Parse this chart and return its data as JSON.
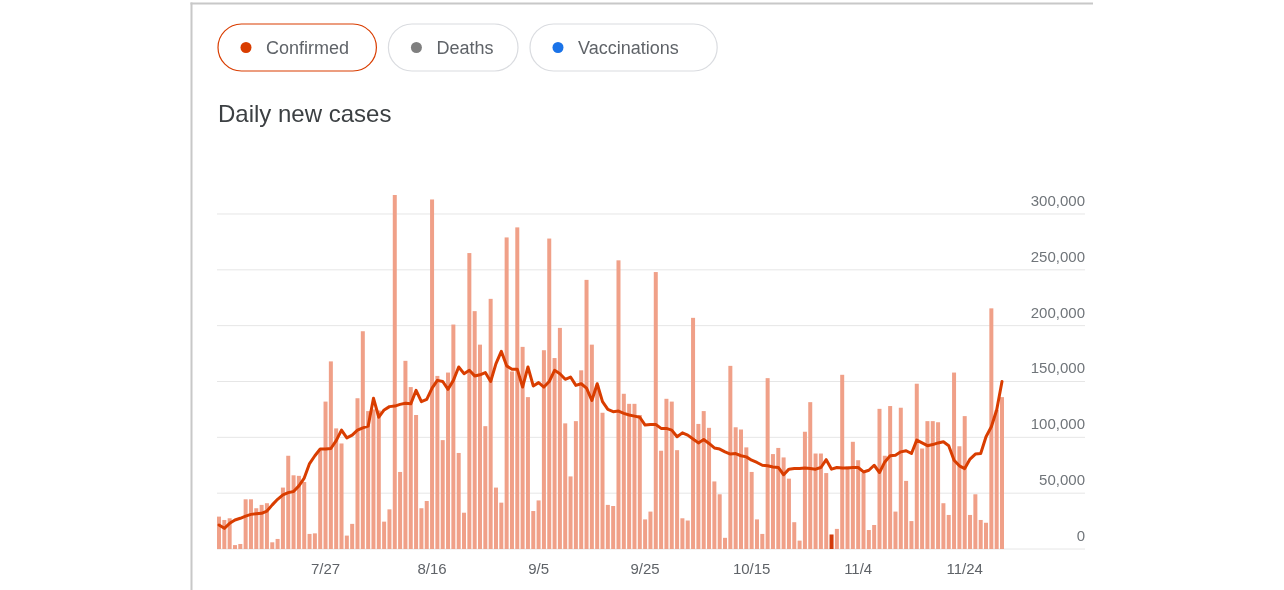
{
  "chart_data": {
    "type": "bar",
    "title": "Daily new cases",
    "annotations": [
      "Confirmed",
      "Deaths",
      "Vaccinations"
    ],
    "categories": [
      null,
      null,
      null,
      null,
      null,
      null,
      null,
      null,
      null,
      null,
      null,
      null,
      null,
      null,
      null,
      null,
      null,
      null,
      null,
      null,
      "7/27",
      null,
      null,
      null,
      null,
      null,
      null,
      null,
      null,
      null,
      null,
      null,
      null,
      null,
      null,
      null,
      null,
      null,
      null,
      null,
      "8/16",
      null,
      null,
      null,
      null,
      null,
      null,
      null,
      null,
      null,
      null,
      null,
      null,
      null,
      null,
      null,
      null,
      null,
      null,
      null,
      "9/5",
      null,
      null,
      null,
      null,
      null,
      null,
      null,
      null,
      null,
      null,
      null,
      null,
      null,
      null,
      null,
      null,
      null,
      null,
      null,
      "9/25",
      null,
      null,
      null,
      null,
      null,
      null,
      null,
      null,
      null,
      null,
      null,
      null,
      null,
      null,
      null,
      null,
      null,
      null,
      null,
      "10/15",
      null,
      null,
      null,
      null,
      null,
      null,
      null,
      null,
      null,
      null,
      null,
      null,
      null,
      null,
      null,
      null,
      null,
      null,
      null,
      "11/4",
      null,
      null,
      null,
      null,
      null,
      null,
      null,
      null,
      null,
      null,
      null,
      null,
      null,
      null,
      null,
      null,
      null,
      null,
      null,
      "11/24",
      null,
      null,
      null,
      null,
      null,
      null,
      null
    ],
    "series": [
      {
        "color": "#f0a088",
        "colors": [
          null,
          null,
          null,
          null,
          null,
          null,
          null,
          null,
          null,
          null,
          null,
          null,
          null,
          null,
          null,
          null,
          null,
          null,
          null,
          null,
          null,
          null,
          null,
          null,
          null,
          null,
          null,
          null,
          null,
          null,
          null,
          null,
          null,
          null,
          null,
          null,
          null,
          null,
          null,
          null,
          null,
          null,
          null,
          null,
          null,
          null,
          null,
          null,
          null,
          null,
          null,
          null,
          null,
          null,
          null,
          null,
          null,
          null,
          null,
          null,
          null,
          null,
          null,
          null,
          null,
          null,
          null,
          null,
          null,
          null,
          null,
          null,
          null,
          null,
          null,
          null,
          null,
          null,
          null,
          null,
          null,
          null,
          null,
          null,
          null,
          null,
          null,
          null,
          null,
          null,
          null,
          null,
          null,
          null,
          null,
          null,
          null,
          null,
          null,
          null,
          null,
          null,
          null,
          null,
          null,
          null,
          null,
          null,
          null,
          null,
          null,
          null,
          null,
          null,
          null,
          "#d33b0b",
          null,
          null,
          null,
          null,
          null,
          null,
          null,
          null,
          null,
          null,
          null,
          null,
          null,
          null,
          null,
          null,
          null,
          null,
          null,
          null,
          null,
          null,
          null,
          null,
          null,
          null,
          null,
          null,
          null,
          null,
          null,
          null
        ],
        "values": [
          29000,
          26000,
          27500,
          3500,
          4500,
          44500,
          44500,
          36500,
          39500,
          41000,
          6000,
          9000,
          55000,
          83500,
          66000,
          65500,
          60000,
          13500,
          14000,
          88500,
          132000,
          168000,
          108000,
          94500,
          12000,
          22500,
          135000,
          195000,
          123500,
          125000,
          124000,
          24500,
          35500,
          317000,
          69000,
          168500,
          145000,
          120000,
          36500,
          43000,
          313000,
          155000,
          97500,
          158000,
          201000,
          86000,
          32500,
          265000,
          213000,
          183000,
          110000,
          224000,
          55000,
          41500,
          279000,
          159000,
          288000,
          181000,
          136000,
          34000,
          43500,
          178000,
          278000,
          171000,
          198000,
          112500,
          65000,
          114500,
          160000,
          241000,
          183000,
          147000,
          122000,
          39500,
          38500,
          258500,
          139000,
          130000,
          130000,
          120000,
          26500,
          33500,
          248000,
          88000,
          134500,
          132000,
          88500,
          27500,
          25500,
          207000,
          112000,
          123500,
          108500,
          60500,
          49000,
          10000,
          164000,
          109000,
          107000,
          91000,
          69000,
          26500,
          13500,
          153000,
          85000,
          90500,
          82000,
          63000,
          24000,
          7500,
          105000,
          131500,
          85500,
          85500,
          68000,
          13000,
          18000,
          156000,
          74000,
          96000,
          79500,
          68000,
          17000,
          21500,
          125500,
          83500,
          128000,
          33500,
          126500,
          61000,
          25000,
          148000,
          90000,
          114500,
          114500,
          113500,
          41000,
          30500,
          158000,
          92000,
          119000,
          30500,
          49000,
          26000,
          23500,
          215500,
          124500,
          136000
        ]
      },
      {
        "type": "line",
        "color": "#d93d00",
        "values": [
          21500,
          18500,
          23000,
          26000,
          27500,
          29500,
          31000,
          31500,
          32000,
          34000,
          39500,
          44500,
          48500,
          50500,
          51500,
          56500,
          63500,
          76500,
          83500,
          89500,
          89500,
          90000,
          97000,
          106500,
          99500,
          102000,
          106500,
          108500,
          110000,
          135000,
          118000,
          124500,
          127500,
          128000,
          129500,
          130500,
          130000,
          142000,
          132000,
          134000,
          144000,
          151000,
          150000,
          143000,
          151000,
          163000,
          157000,
          160000,
          155000,
          156000,
          158000,
          150000,
          166000,
          177000,
          164000,
          161000,
          161000,
          145000,
          163000,
          146000,
          149000,
          145000,
          150000,
          160000,
          157000,
          152000,
          154000,
          146500,
          148000,
          144000,
          133000,
          148000,
          132000,
          125000,
          123000,
          123500,
          121500,
          120000,
          119000,
          118000,
          111000,
          111500,
          111500,
          108000,
          108000,
          106500,
          100500,
          104000,
          102000,
          98500,
          95000,
          98000,
          94500,
          90500,
          89500,
          87000,
          85000,
          85500,
          83500,
          82500,
          79500,
          77500,
          75000,
          74500,
          73500,
          73000,
          66500,
          71500,
          72000,
          72000,
          72500,
          72000,
          71500,
          73000,
          80000,
          71500,
          73000,
          72500,
          72500,
          73000,
          73000,
          69000,
          70500,
          75000,
          68500,
          78000,
          83500,
          84000,
          87000,
          88000,
          85500,
          97500,
          95000,
          92500,
          93500,
          95000,
          96000,
          92500,
          79500,
          74500,
          72000,
          80500,
          85000,
          85500,
          100500,
          109500,
          124500,
          150000
        ]
      }
    ],
    "yticks": [
      {
        "value": 0,
        "label": "0"
      },
      {
        "value": 50000,
        "label": "50,000"
      },
      {
        "value": 100000,
        "label": "100,000"
      },
      {
        "value": 150000,
        "label": "150,000"
      },
      {
        "value": 200000,
        "label": "200,000"
      },
      {
        "value": 250000,
        "label": "250,000"
      },
      {
        "value": 300000,
        "label": "300,000"
      }
    ],
    "ylim": [
      0,
      317000
    ],
    "grid": "y"
  }
}
